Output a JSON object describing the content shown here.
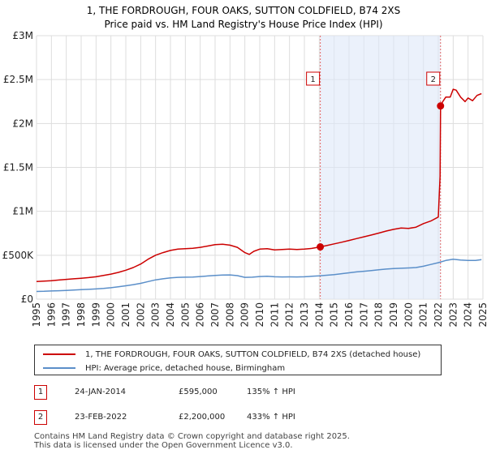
{
  "chart_data": {
    "type": "line",
    "title": "1, THE FORDROUGH, FOUR OAKS, SUTTON COLDFIELD, B74 2XS",
    "subtitle": "Price paid vs. HM Land Registry's House Price Index (HPI)",
    "xlabel": "",
    "ylabel": "",
    "xlim": [
      1995,
      2025
    ],
    "ylim": [
      0,
      3000000
    ],
    "y_ticks": [
      {
        "value": 0,
        "label": "£0"
      },
      {
        "value": 500000,
        "label": "£500K"
      },
      {
        "value": 1000000,
        "label": "£1M"
      },
      {
        "value": 1500000,
        "label": "£1.5M"
      },
      {
        "value": 2000000,
        "label": "£2M"
      },
      {
        "value": 2500000,
        "label": "£2.5M"
      },
      {
        "value": 3000000,
        "label": "£3M"
      }
    ],
    "x_ticks": [
      "1995",
      "1996",
      "1997",
      "1998",
      "1999",
      "2000",
      "2001",
      "2002",
      "2003",
      "2004",
      "2005",
      "2006",
      "2007",
      "2008",
      "2009",
      "2010",
      "2011",
      "2012",
      "2013",
      "2014",
      "2015",
      "2016",
      "2017",
      "2018",
      "2019",
      "2020",
      "2021",
      "2022",
      "2023",
      "2024",
      "2025"
    ],
    "grid": true,
    "series": [
      {
        "name": "1, THE FORDROUGH, FOUR OAKS, SUTTON COLDFIELD, B74 2XS (detached house)",
        "color": "#cc0000",
        "x": [
          1995,
          1995.5,
          1996,
          1996.5,
          1997,
          1997.5,
          1998,
          1998.5,
          1999,
          1999.5,
          2000,
          2000.5,
          2001,
          2001.5,
          2002,
          2002.5,
          2003,
          2003.5,
          2004,
          2004.5,
          2005,
          2005.5,
          2006,
          2006.5,
          2007,
          2007.5,
          2008,
          2008.5,
          2009,
          2009.3,
          2009.6,
          2010,
          2010.5,
          2011,
          2011.5,
          2012,
          2012.5,
          2013,
          2013.5,
          2014.07,
          2014.5,
          2015,
          2015.5,
          2016,
          2016.5,
          2017,
          2017.5,
          2018,
          2018.5,
          2019,
          2019.5,
          2020,
          2020.5,
          2021,
          2021.5,
          2022.0,
          2022.12,
          2022.15,
          2022.3,
          2022.5,
          2022.8,
          2023.0,
          2023.2,
          2023.5,
          2023.8,
          2024.0,
          2024.3,
          2024.6,
          2024.9
        ],
        "values": [
          200000,
          205000,
          210000,
          218000,
          225000,
          232000,
          238000,
          246000,
          255000,
          270000,
          285000,
          305000,
          330000,
          360000,
          400000,
          455000,
          500000,
          530000,
          555000,
          570000,
          575000,
          580000,
          590000,
          605000,
          620000,
          625000,
          615000,
          590000,
          530000,
          510000,
          545000,
          570000,
          575000,
          560000,
          565000,
          570000,
          565000,
          570000,
          578000,
          595000,
          610000,
          630000,
          648000,
          668000,
          690000,
          710000,
          730000,
          752000,
          775000,
          795000,
          810000,
          805000,
          820000,
          860000,
          890000,
          935000,
          1400000,
          2200000,
          2250000,
          2300000,
          2300000,
          2390000,
          2380000,
          2300000,
          2250000,
          2290000,
          2260000,
          2320000,
          2340000
        ]
      },
      {
        "name": "HPI: Average price, detached house, Birmingham",
        "color": "#5b8fc9",
        "x": [
          1995,
          1995.5,
          1996,
          1996.5,
          1997,
          1997.5,
          1998,
          1998.5,
          1999,
          1999.5,
          2000,
          2000.5,
          2001,
          2001.5,
          2002,
          2002.5,
          2003,
          2003.5,
          2004,
          2004.5,
          2005,
          2005.5,
          2006,
          2006.5,
          2007,
          2007.5,
          2008,
          2008.5,
          2009,
          2009.5,
          2010,
          2010.5,
          2011,
          2011.5,
          2012,
          2012.5,
          2013,
          2013.5,
          2014,
          2014.5,
          2015,
          2015.5,
          2016,
          2016.5,
          2017,
          2017.5,
          2018,
          2018.5,
          2019,
          2019.5,
          2020,
          2020.5,
          2021,
          2021.5,
          2022,
          2022.5,
          2023,
          2023.5,
          2024,
          2024.5,
          2024.9
        ],
        "values": [
          88000,
          90000,
          93000,
          96000,
          100000,
          104000,
          108000,
          112000,
          116000,
          122000,
          130000,
          140000,
          152000,
          165000,
          180000,
          200000,
          220000,
          232000,
          243000,
          248000,
          250000,
          252000,
          258000,
          264000,
          270000,
          275000,
          276000,
          268000,
          248000,
          250000,
          258000,
          260000,
          255000,
          253000,
          254000,
          253000,
          255000,
          260000,
          265000,
          272000,
          280000,
          290000,
          300000,
          310000,
          318000,
          326000,
          334000,
          342000,
          348000,
          352000,
          355000,
          360000,
          375000,
          395000,
          415000,
          440000,
          455000,
          445000,
          440000,
          440000,
          450000
        ]
      }
    ],
    "sales": [
      {
        "label": "1",
        "x": 2014.07,
        "value": 595000
      },
      {
        "label": "2",
        "x": 2022.15,
        "value": 2200000
      }
    ]
  },
  "legend": {
    "entries": [
      {
        "label": "1, THE FORDROUGH, FOUR OAKS, SUTTON COLDFIELD, B74 2XS (detached house)",
        "color": "#cc0000"
      },
      {
        "label": "HPI: Average price, detached house, Birmingham",
        "color": "#5b8fc9"
      }
    ]
  },
  "transactions": [
    {
      "num": "1",
      "date": "24-JAN-2014",
      "price": "£595,000",
      "hpi": "135% ↑ HPI"
    },
    {
      "num": "2",
      "date": "23-FEB-2022",
      "price": "£2,200,000",
      "hpi": "433% ↑ HPI"
    }
  ],
  "footer": {
    "line1": "Contains HM Land Registry data © Crown copyright and database right 2025.",
    "line2": "This data is licensed under the Open Government Licence v3.0."
  }
}
